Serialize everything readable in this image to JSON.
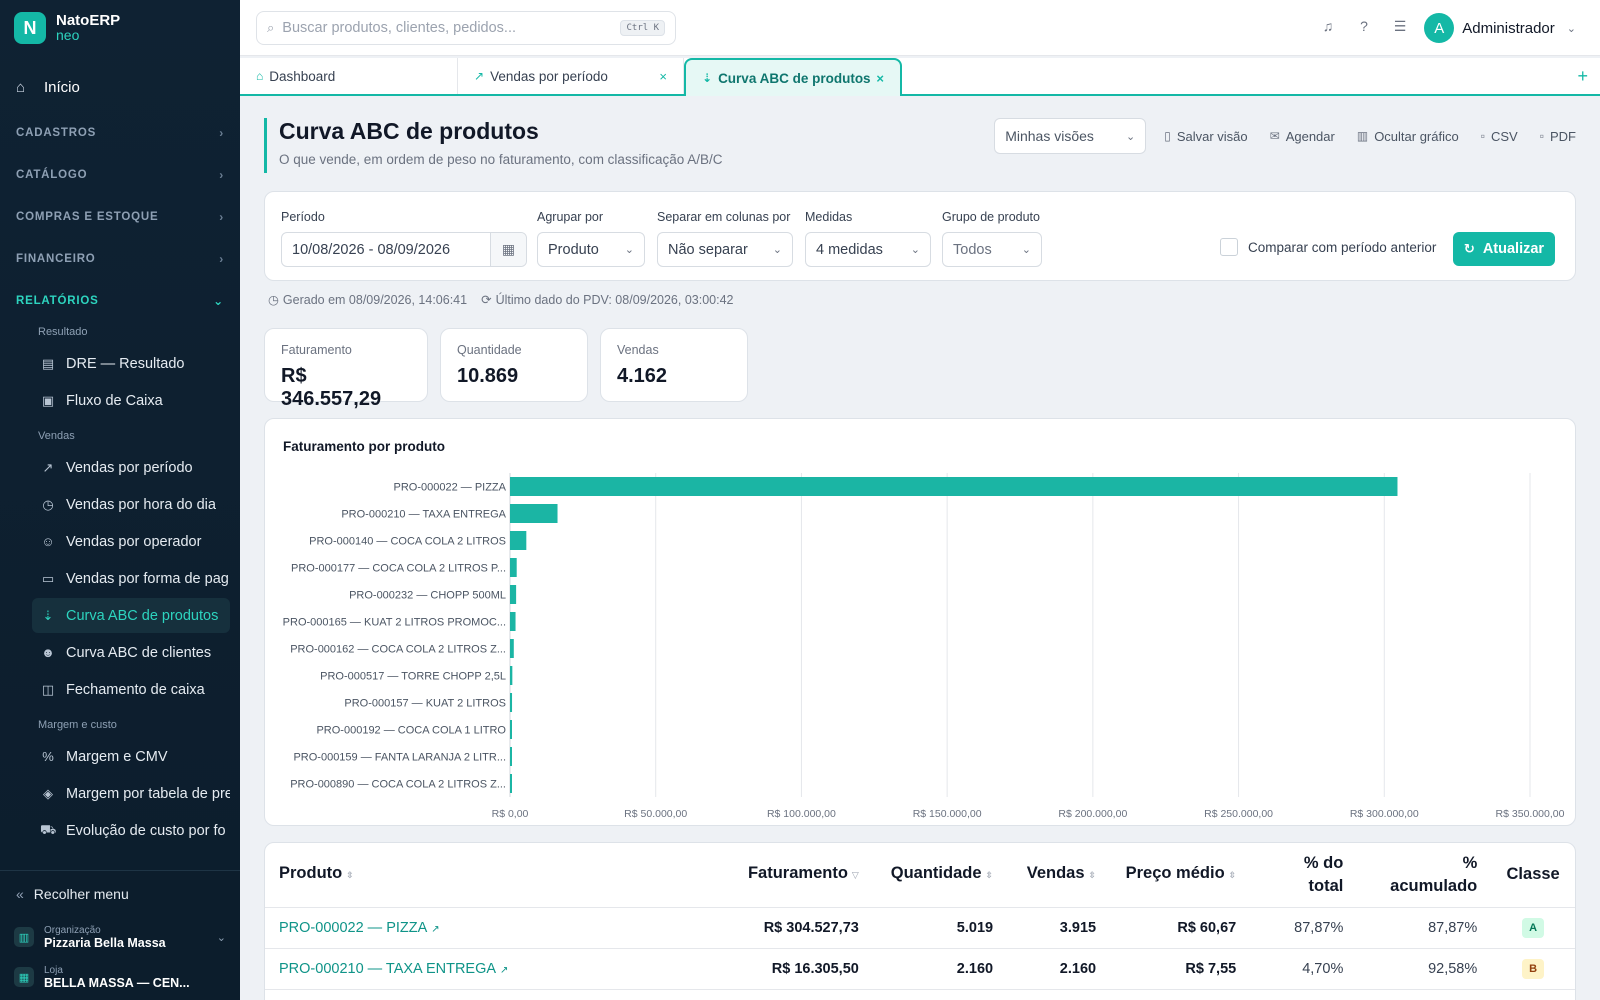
{
  "app": {
    "name": "NatoERP",
    "sub": "neo",
    "logo_letter": "N"
  },
  "sidebar": {
    "home": "Início",
    "sections": [
      "CADASTROS",
      "CATÁLOGO",
      "COMPRAS E ESTOQUE",
      "FINANCEIRO",
      "RELATÓRIOS"
    ],
    "groups": [
      "Resultado",
      "Vendas",
      "Margem e custo"
    ],
    "items": [
      "DRE — Resultado",
      "Fluxo de Caixa",
      "Vendas por período",
      "Vendas por hora do dia",
      "Vendas por operador",
      "Vendas por forma de pag",
      "Curva ABC de produtos",
      "Curva ABC de clientes",
      "Fechamento de caixa",
      "Margem e CMV",
      "Margem por tabela de pre",
      "Evolução de custo por fo"
    ],
    "collapse": "Recolher menu",
    "org_label": "Organização",
    "org_value": "Pizzaria Bella Massa",
    "store_label": "Loja",
    "store_value": "BELLA MASSA — CEN..."
  },
  "topbar": {
    "search_placeholder": "Buscar produtos, clientes, pedidos...",
    "shortcut": "Ctrl K",
    "user_initial": "A",
    "user_name": "Administrador"
  },
  "tabs": [
    {
      "label": "Dashboard",
      "icon": "home-icon"
    },
    {
      "label": "Vendas por período",
      "icon": "line-chart-icon"
    },
    {
      "label": "Curva ABC de produtos",
      "icon": "sort-desc-icon"
    }
  ],
  "page": {
    "title": "Curva ABC de produtos",
    "subtitle": "O que vende, em ordem de peso no faturamento, com classificação A/B/C",
    "views_select": "Minhas visões",
    "actions": [
      "Salvar visão",
      "Agendar",
      "Ocultar gráfico",
      "CSV",
      "PDF"
    ]
  },
  "filters": {
    "period_label": "Período",
    "period_value": "10/08/2026 - 08/09/2026",
    "group_label": "Agrupar por",
    "group_value": "Produto",
    "split_label": "Separar em colunas por",
    "split_value": "Não separar",
    "measures_label": "Medidas",
    "measures_value": "4 medidas",
    "product_group_label": "Grupo de produto",
    "product_group_value": "Todos",
    "compare_label": "Comparar com período anterior",
    "update_button": "Atualizar"
  },
  "meta": {
    "generated": "Gerado em 08/09/2026, 14:06:41",
    "last_pdv": "Último dado do PDV: 08/09/2026, 03:00:42"
  },
  "kpis": [
    {
      "label": "Faturamento",
      "value": "R$ 346.557,29"
    },
    {
      "label": "Quantidade",
      "value": "10.869"
    },
    {
      "label": "Vendas",
      "value": "4.162"
    }
  ],
  "chart_data": {
    "type": "bar",
    "orientation": "horizontal",
    "title": "Faturamento por produto",
    "categories": [
      "PRO-000022 — PIZZA",
      "PRO-000210 — TAXA ENTREGA",
      "PRO-000140 — COCA COLA 2 LITROS",
      "PRO-000177 — COCA COLA 2 LITROS P...",
      "PRO-000232 — CHOPP 500ML",
      "PRO-000165 — KUAT 2 LITROS PROMOC...",
      "PRO-000162 — COCA COLA 2 LITROS Z...",
      "PRO-000517 — TORRE CHOPP 2,5L",
      "PRO-000157 — KUAT 2 LITROS",
      "PRO-000192 — COCA COLA 1 LITRO",
      "PRO-000159 — FANTA LARANJA 2 LITR...",
      "PRO-000890 — COCA COLA 2 LITROS Z..."
    ],
    "values": [
      304527.73,
      16305.5,
      5600,
      2300,
      2100,
      1900,
      1300,
      800,
      700,
      550,
      500,
      450
    ],
    "xlim": [
      0,
      350000
    ],
    "ticks": [
      0,
      50000,
      100000,
      150000,
      200000,
      250000,
      300000,
      350000
    ],
    "tick_labels": [
      "R$ 0,00",
      "R$ 50.000,00",
      "R$ 100.000,00",
      "R$ 150.000,00",
      "R$ 200.000,00",
      "R$ 250.000,00",
      "R$ 300.000,00",
      "R$ 350.000,00"
    ],
    "bar_color": "#1bb5a4",
    "grid": true
  },
  "table": {
    "headers": [
      "Produto",
      "Faturamento",
      "Quantidade",
      "Vendas",
      "Preço médio",
      "% do total",
      "% acumulado",
      "Classe"
    ],
    "rows": [
      [
        "PRO-000022 — PIZZA",
        "R$ 304.527,73",
        "5.019",
        "3.915",
        "R$ 60,67",
        "87,87%",
        "87,87%",
        "A"
      ],
      [
        "PRO-000210 — TAXA ENTREGA",
        "R$ 16.305,50",
        "2.160",
        "2.160",
        "R$ 7,55",
        "4,70%",
        "92,58%",
        "B"
      ]
    ],
    "class_colors": {
      "A": "#d1fae5",
      "B": "#fef3c7"
    },
    "class_text_colors": {
      "A": "#047857",
      "B": "#92400e"
    }
  }
}
